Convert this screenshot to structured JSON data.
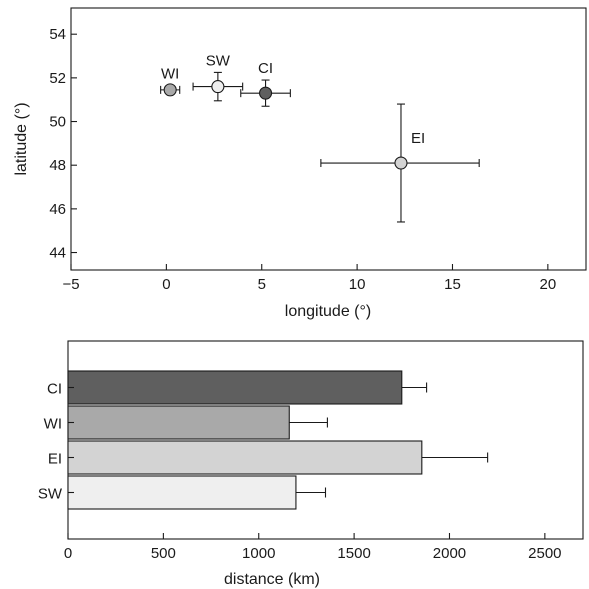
{
  "chart_data": [
    {
      "type": "scatter",
      "xlabel": "longitude (°)",
      "ylabel": "latitude (°)",
      "xlim": [
        -5,
        22
      ],
      "ylim": [
        43.2,
        55.2
      ],
      "xticks": [
        -5,
        0,
        5,
        10,
        15,
        20
      ],
      "yticks": [
        44,
        46,
        48,
        50,
        52,
        54
      ],
      "grid": false,
      "points": [
        {
          "label": "WI",
          "x": 0.2,
          "y": 51.45,
          "xerr_low": 0.5,
          "xerr_high": 0.5,
          "yerr_low": 0.2,
          "yerr_high": 0.2,
          "color": "#a9a9a9"
        },
        {
          "label": "SW",
          "x": 2.7,
          "y": 51.6,
          "xerr_low": 1.3,
          "xerr_high": 1.3,
          "yerr_low": 0.65,
          "yerr_high": 0.65,
          "color": "#efefef"
        },
        {
          "label": "CI",
          "x": 5.2,
          "y": 51.3,
          "xerr_low": 1.3,
          "xerr_high": 1.3,
          "yerr_low": 0.6,
          "yerr_high": 0.6,
          "color": "#5f5f5f"
        },
        {
          "label": "EI",
          "x": 12.3,
          "y": 48.1,
          "xerr_low": 4.2,
          "xerr_high": 4.1,
          "yerr_low": 2.7,
          "yerr_high": 2.7,
          "color": "#d3d3d3"
        }
      ]
    },
    {
      "type": "bar",
      "orientation": "horizontal",
      "xlabel": "distance (km)",
      "ylabel": "",
      "xlim": [
        0,
        2700
      ],
      "xticks": [
        0,
        500,
        1000,
        1500,
        2000,
        2500
      ],
      "grid": false,
      "categories": [
        "CI",
        "WI",
        "EI",
        "SW"
      ],
      "values": [
        1750,
        1160,
        1855,
        1195
      ],
      "errors": [
        130,
        200,
        345,
        155
      ],
      "colors": [
        "#5f5f5f",
        "#a9a9a9",
        "#d3d3d3",
        "#efefef"
      ]
    }
  ]
}
